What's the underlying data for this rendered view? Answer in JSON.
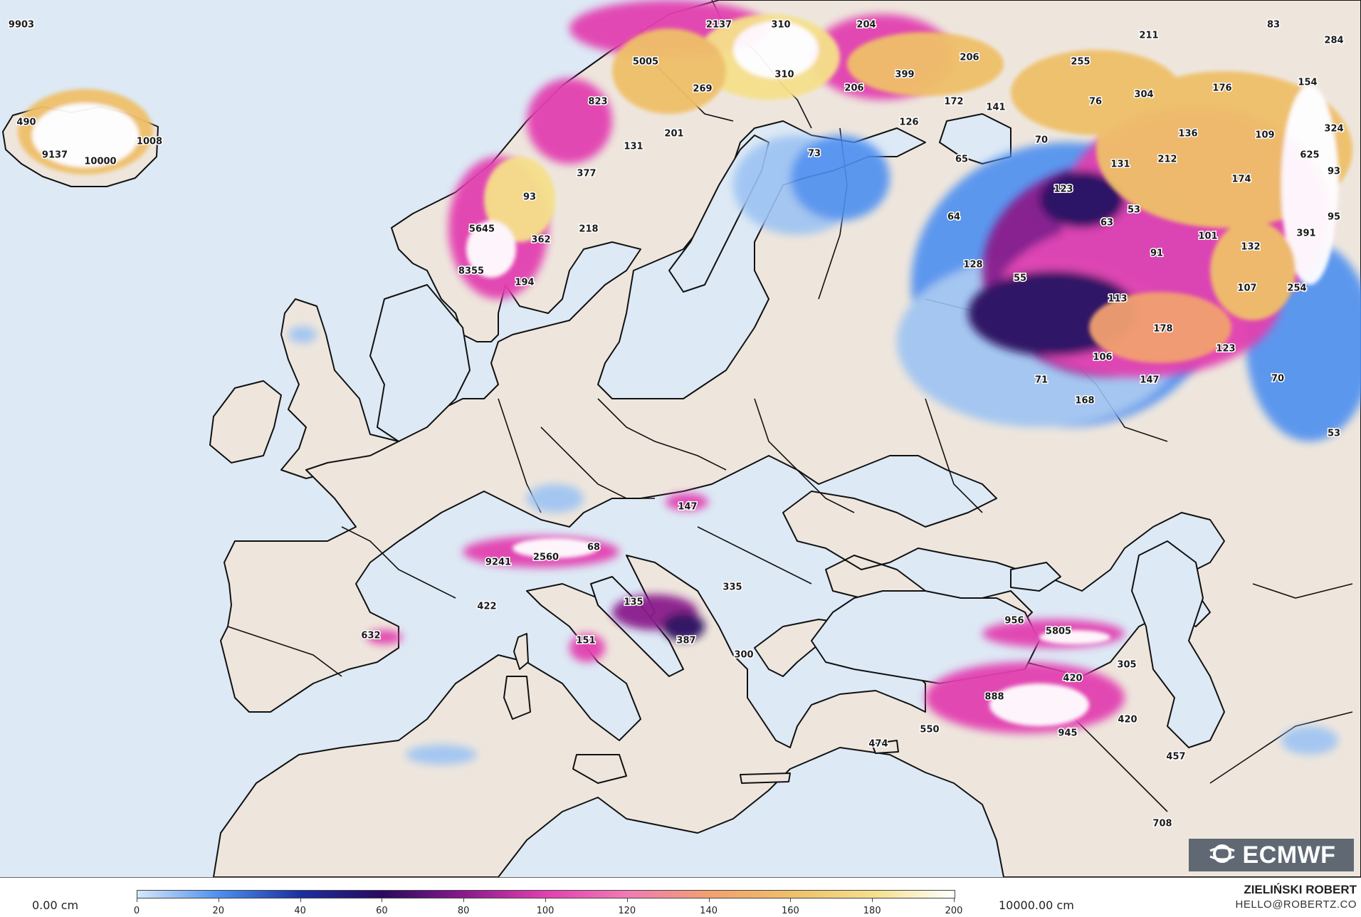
{
  "map": {
    "colors": {
      "sea": "#dde9f5",
      "land": "#eee6dd",
      "border": "#111111"
    },
    "snow_labels": [
      {
        "name": "label-9903",
        "text": "9903"
      },
      {
        "name": "label-2137",
        "text": "2137"
      },
      {
        "name": "label-310a",
        "text": "310"
      },
      {
        "name": "label-204",
        "text": "204"
      },
      {
        "name": "label-211",
        "text": "211"
      },
      {
        "name": "label-83",
        "text": "83"
      },
      {
        "name": "label-284",
        "text": "284"
      },
      {
        "name": "label-5005",
        "text": "5005"
      },
      {
        "name": "label-269",
        "text": "269"
      },
      {
        "name": "label-310b",
        "text": "310"
      },
      {
        "name": "label-206a",
        "text": "206"
      },
      {
        "name": "label-399",
        "text": "399"
      },
      {
        "name": "label-206b",
        "text": "206"
      },
      {
        "name": "label-255",
        "text": "255"
      },
      {
        "name": "label-304",
        "text": "304"
      },
      {
        "name": "label-176",
        "text": "176"
      },
      {
        "name": "label-154",
        "text": "154"
      },
      {
        "name": "label-490",
        "text": "490"
      },
      {
        "name": "label-1008",
        "text": "1008"
      },
      {
        "name": "label-9137",
        "text": "9137"
      },
      {
        "name": "label-10000",
        "text": "10000"
      },
      {
        "name": "label-823",
        "text": "823"
      },
      {
        "name": "label-201",
        "text": "201"
      },
      {
        "name": "label-126",
        "text": "126"
      },
      {
        "name": "label-172",
        "text": "172"
      },
      {
        "name": "label-141",
        "text": "141"
      },
      {
        "name": "label-76",
        "text": "76"
      },
      {
        "name": "label-136",
        "text": "136"
      },
      {
        "name": "label-109",
        "text": "109"
      },
      {
        "name": "label-324",
        "text": "324"
      },
      {
        "name": "label-131a",
        "text": "131"
      },
      {
        "name": "label-73",
        "text": "73"
      },
      {
        "name": "label-70a",
        "text": "70"
      },
      {
        "name": "label-65",
        "text": "65"
      },
      {
        "name": "label-131b",
        "text": "131"
      },
      {
        "name": "label-212",
        "text": "212"
      },
      {
        "name": "label-625",
        "text": "625"
      },
      {
        "name": "label-377",
        "text": "377"
      },
      {
        "name": "label-123a",
        "text": "123"
      },
      {
        "name": "label-174",
        "text": "174"
      },
      {
        "name": "label-93a",
        "text": "93"
      },
      {
        "name": "label-93b",
        "text": "93"
      },
      {
        "name": "label-53a",
        "text": "53"
      },
      {
        "name": "label-95",
        "text": "95"
      },
      {
        "name": "label-64",
        "text": "64"
      },
      {
        "name": "label-63",
        "text": "63"
      },
      {
        "name": "label-5645",
        "text": "5645"
      },
      {
        "name": "label-218",
        "text": "218"
      },
      {
        "name": "label-362",
        "text": "362"
      },
      {
        "name": "label-391",
        "text": "391"
      },
      {
        "name": "label-101",
        "text": "101"
      },
      {
        "name": "label-91",
        "text": "91"
      },
      {
        "name": "label-132",
        "text": "132"
      },
      {
        "name": "label-128",
        "text": "128"
      },
      {
        "name": "label-8355",
        "text": "8355"
      },
      {
        "name": "label-194",
        "text": "194"
      },
      {
        "name": "label-55",
        "text": "55"
      },
      {
        "name": "label-107",
        "text": "107"
      },
      {
        "name": "label-254",
        "text": "254"
      },
      {
        "name": "label-113",
        "text": "113"
      },
      {
        "name": "label-178",
        "text": "178"
      },
      {
        "name": "label-123b",
        "text": "123"
      },
      {
        "name": "label-106",
        "text": "106"
      },
      {
        "name": "label-71",
        "text": "71"
      },
      {
        "name": "label-147a",
        "text": "147"
      },
      {
        "name": "label-70b",
        "text": "70"
      },
      {
        "name": "label-168",
        "text": "168"
      },
      {
        "name": "label-53b",
        "text": "53"
      },
      {
        "name": "label-147b",
        "text": "147"
      },
      {
        "name": "label-68",
        "text": "68"
      },
      {
        "name": "label-2560",
        "text": "2560"
      },
      {
        "name": "label-9241",
        "text": "9241"
      },
      {
        "name": "label-335",
        "text": "335"
      },
      {
        "name": "label-422",
        "text": "422"
      },
      {
        "name": "label-135",
        "text": "135"
      },
      {
        "name": "label-956",
        "text": "956"
      },
      {
        "name": "label-5805",
        "text": "5805"
      },
      {
        "name": "label-632",
        "text": "632"
      },
      {
        "name": "label-151",
        "text": "151"
      },
      {
        "name": "label-387",
        "text": "387"
      },
      {
        "name": "label-300",
        "text": "300"
      },
      {
        "name": "label-305",
        "text": "305"
      },
      {
        "name": "label-420a",
        "text": "420"
      },
      {
        "name": "label-888",
        "text": "888"
      },
      {
        "name": "label-420b",
        "text": "420"
      },
      {
        "name": "label-550",
        "text": "550"
      },
      {
        "name": "label-945",
        "text": "945"
      },
      {
        "name": "label-474",
        "text": "474"
      },
      {
        "name": "label-457",
        "text": "457"
      },
      {
        "name": "label-708",
        "text": "708"
      }
    ]
  },
  "logo": {
    "text": "ECMWF",
    "icon": "ecmwf-swirl-icon"
  },
  "legend": {
    "min_label": "0.00 cm",
    "max_label": "10000.00 cm",
    "ticks": [
      "0",
      "20",
      "40",
      "60",
      "80",
      "100",
      "120",
      "140",
      "160",
      "180",
      "200"
    ],
    "colors": [
      "#d6e8fb",
      "#4d8ff0",
      "#1b2f9e",
      "#2a0a5e",
      "#8a1a8c",
      "#e23fb0",
      "#f07cb3",
      "#f2a070",
      "#efc069",
      "#f5e08a",
      "#ffffff"
    ]
  },
  "credit": {
    "name": "ZIELIŃSKI ROBERT",
    "email": "HELLO@ROBERTZ.CO"
  }
}
